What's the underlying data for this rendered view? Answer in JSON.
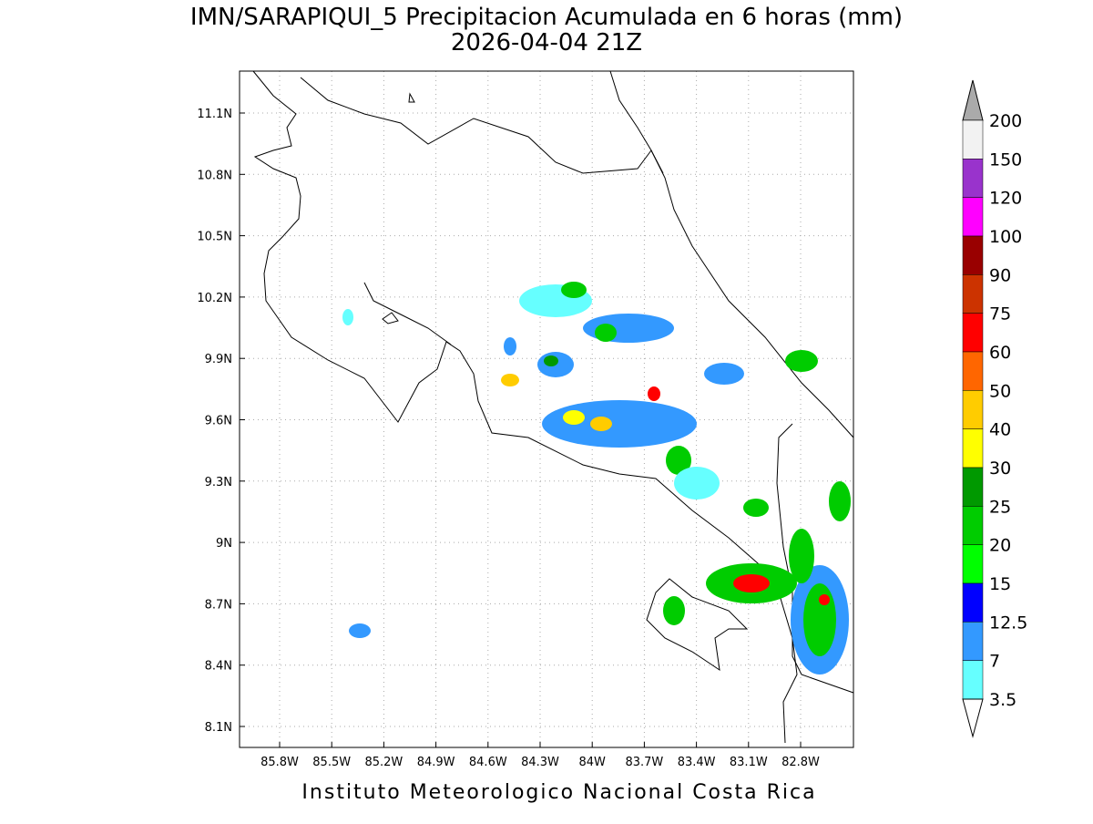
{
  "header": {
    "title": "IMN/SARAPIQUI_5 Precipitacion Acumulada en 6 horas (mm)",
    "subtitle": "2026-04-04 21Z"
  },
  "map": {
    "lon_ticks": [
      "85.8W",
      "85.5W",
      "85.2W",
      "84.9W",
      "84.6W",
      "84.3W",
      "84W",
      "83.7W",
      "83.4W",
      "83.1W",
      "82.8W"
    ],
    "lat_ticks": [
      "11.1N",
      "10.8N",
      "10.5N",
      "10.2N",
      "9.9N",
      "9.6N",
      "9.3N",
      "9N",
      "8.7N",
      "8.4N",
      "8.1N"
    ]
  },
  "colorbar": {
    "labels": [
      "200",
      "150",
      "120",
      "100",
      "90",
      "75",
      "60",
      "50",
      "40",
      "30",
      "25",
      "20",
      "15",
      "12.5",
      "7",
      "3.5"
    ],
    "colors": [
      "#f2f2f2",
      "#9933cc",
      "#ff00ff",
      "#990000",
      "#cc3300",
      "#ff0000",
      "#ff6600",
      "#ffcc00",
      "#ffff00",
      "#009900",
      "#00cc00",
      "#00ff00",
      "#0000ff",
      "#3399ff",
      "#66ffff"
    ],
    "over_color": "#aaaaaa",
    "under_color": "#ffffff"
  },
  "footer": "Instituto Meteorologico Nacional Costa Rica"
}
